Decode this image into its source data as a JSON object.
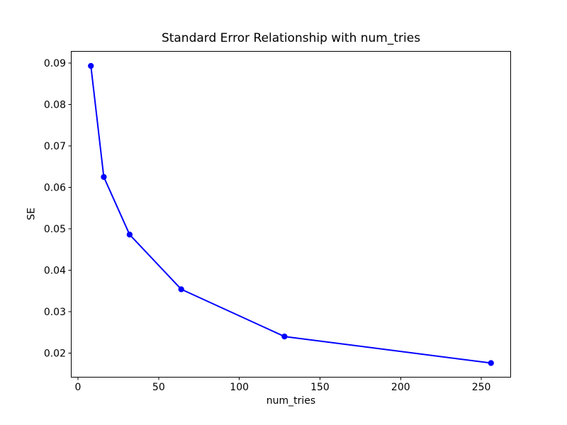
{
  "figure": {
    "title": "Standard Error Relationship with num_tries",
    "xlabel": "num_tries",
    "ylabel": "SE",
    "background_color": "#ffffff"
  },
  "chart_data": {
    "type": "line",
    "title": "Standard Error Relationship with num_tries",
    "xlabel": "num_tries",
    "ylabel": "SE",
    "series": [
      {
        "name": "SE",
        "x": [
          8,
          16,
          32,
          64,
          128,
          256
        ],
        "y": [
          0.0893,
          0.0625,
          0.0486,
          0.0354,
          0.024,
          0.0176
        ],
        "color": "#0000ff",
        "marker": "circle",
        "line_width": 2,
        "marker_radius": 4.15
      }
    ],
    "xlim": [
      -4.4,
      268.4
    ],
    "ylim": [
      0.0141,
      0.0929
    ],
    "xticks": [
      0,
      50,
      100,
      150,
      200,
      250
    ],
    "xtick_labels": [
      "0",
      "50",
      "100",
      "150",
      "200",
      "250"
    ],
    "yticks": [
      0.02,
      0.03,
      0.04,
      0.05,
      0.06,
      0.07,
      0.08,
      0.09
    ],
    "ytick_labels": [
      "0.02",
      "0.03",
      "0.04",
      "0.05",
      "0.06",
      "0.07",
      "0.08",
      "0.09"
    ],
    "grid": false,
    "legend_position": null,
    "axis_color": "#000000",
    "tick_label_color": "#000000",
    "tick_font_size": 14,
    "plot_background": "#ffffff"
  }
}
